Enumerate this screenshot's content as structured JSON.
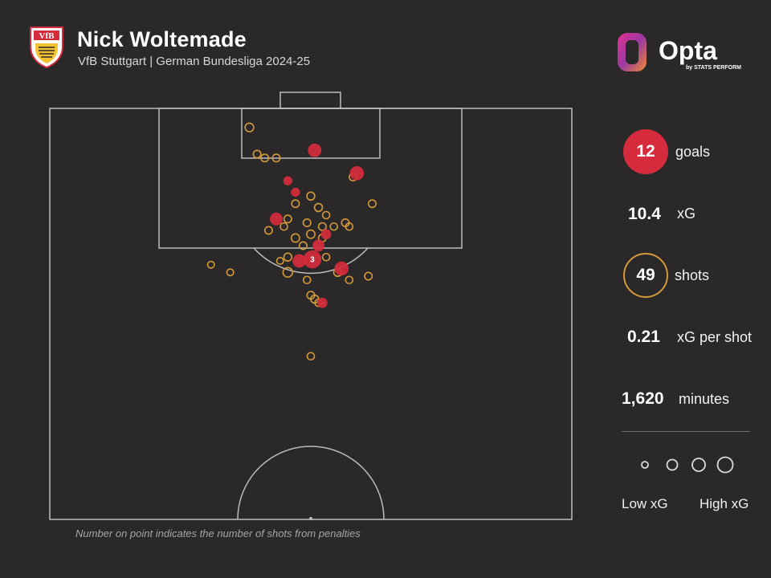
{
  "header": {
    "player_name": "Nick Woltemade",
    "subtitle": "VfB Stuttgart | German Bundesliga 2024-25",
    "club_crest_text": "VfB",
    "brand_name": "Opta",
    "brand_tagline": "by STATS PERFORM"
  },
  "stats": {
    "goals_value": "12",
    "goals_label": "goals",
    "xg_value": "10.4",
    "xg_label": "xG",
    "shots_value": "49",
    "shots_label": "shots",
    "xg_per_shot_value": "0.21",
    "xg_per_shot_label": "xG per shot",
    "minutes_value": "1,620",
    "minutes_label": "minutes"
  },
  "legend": {
    "low_label": "Low xG",
    "high_label": "High xG"
  },
  "footnote": "Number on point indicates the number of shots from penalties",
  "colors": {
    "background": "#2a2828",
    "goal": "#d62b3c",
    "shot": "#d49a3a",
    "pitch_lines": "#bdbdbd"
  },
  "chart_data": {
    "type": "scatter",
    "description_units": "x: metres across pitch width (0-68, left to right), y: metres from goal line",
    "series": [
      {
        "name": "goals",
        "points": [
          {
            "x": 34.5,
            "y": 5.5,
            "xg": 0.35
          },
          {
            "x": 40.0,
            "y": 8.5,
            "xg": 0.4
          },
          {
            "x": 31.0,
            "y": 9.5,
            "xg": 0.1
          },
          {
            "x": 32.0,
            "y": 11.0,
            "xg": 0.1
          },
          {
            "x": 29.5,
            "y": 14.5,
            "xg": 0.3
          },
          {
            "x": 36.0,
            "y": 16.5,
            "xg": 0.15
          },
          {
            "x": 35.0,
            "y": 18.0,
            "xg": 0.25
          },
          {
            "x": 32.5,
            "y": 20.0,
            "xg": 0.35
          },
          {
            "x": 34.2,
            "y": 19.8,
            "xg": 0.76,
            "penalties": "3"
          },
          {
            "x": 38.0,
            "y": 21.0,
            "xg": 0.4
          },
          {
            "x": 35.5,
            "y": 25.5,
            "xg": 0.15
          }
        ]
      },
      {
        "name": "shots",
        "points": [
          {
            "x": 26.0,
            "y": 2.5,
            "xg": 0.08
          },
          {
            "x": 27.0,
            "y": 6.0,
            "xg": 0.05
          },
          {
            "x": 28.0,
            "y": 6.5,
            "xg": 0.05
          },
          {
            "x": 29.5,
            "y": 6.5,
            "xg": 0.05
          },
          {
            "x": 39.5,
            "y": 9.0,
            "xg": 0.05
          },
          {
            "x": 34.0,
            "y": 11.5,
            "xg": 0.06
          },
          {
            "x": 32.0,
            "y": 12.5,
            "xg": 0.05
          },
          {
            "x": 35.0,
            "y": 13.0,
            "xg": 0.06
          },
          {
            "x": 36.0,
            "y": 14.0,
            "xg": 0.04
          },
          {
            "x": 42.0,
            "y": 12.5,
            "xg": 0.05
          },
          {
            "x": 31.0,
            "y": 14.5,
            "xg": 0.05
          },
          {
            "x": 30.5,
            "y": 15.5,
            "xg": 0.04
          },
          {
            "x": 33.5,
            "y": 15.0,
            "xg": 0.05
          },
          {
            "x": 35.5,
            "y": 15.5,
            "xg": 0.05
          },
          {
            "x": 37.0,
            "y": 15.5,
            "xg": 0.04
          },
          {
            "x": 38.5,
            "y": 15.0,
            "xg": 0.05
          },
          {
            "x": 39.0,
            "y": 15.5,
            "xg": 0.04
          },
          {
            "x": 34.0,
            "y": 16.5,
            "xg": 0.07
          },
          {
            "x": 28.5,
            "y": 16.0,
            "xg": 0.05
          },
          {
            "x": 32.0,
            "y": 17.0,
            "xg": 0.07
          },
          {
            "x": 33.0,
            "y": 18.0,
            "xg": 0.05
          },
          {
            "x": 36.0,
            "y": 19.5,
            "xg": 0.04
          },
          {
            "x": 35.5,
            "y": 17.0,
            "xg": 0.05
          },
          {
            "x": 31.0,
            "y": 19.5,
            "xg": 0.06
          },
          {
            "x": 30.0,
            "y": 20.0,
            "xg": 0.03
          },
          {
            "x": 21.0,
            "y": 20.5,
            "xg": 0.03
          },
          {
            "x": 23.5,
            "y": 21.5,
            "xg": 0.03
          },
          {
            "x": 31.0,
            "y": 21.5,
            "xg": 0.12
          },
          {
            "x": 33.5,
            "y": 22.5,
            "xg": 0.04
          },
          {
            "x": 37.5,
            "y": 21.5,
            "xg": 0.06
          },
          {
            "x": 39.0,
            "y": 22.5,
            "xg": 0.04
          },
          {
            "x": 41.5,
            "y": 22.0,
            "xg": 0.05
          },
          {
            "x": 34.0,
            "y": 24.5,
            "xg": 0.05
          },
          {
            "x": 34.5,
            "y": 25.0,
            "xg": 0.06
          },
          {
            "x": 35.0,
            "y": 25.5,
            "xg": 0.04
          },
          {
            "x": 34.0,
            "y": 32.5,
            "xg": 0.04
          }
        ]
      }
    ],
    "legend_sizes_xg": [
      0.02,
      0.1,
      0.2,
      0.35
    ]
  }
}
